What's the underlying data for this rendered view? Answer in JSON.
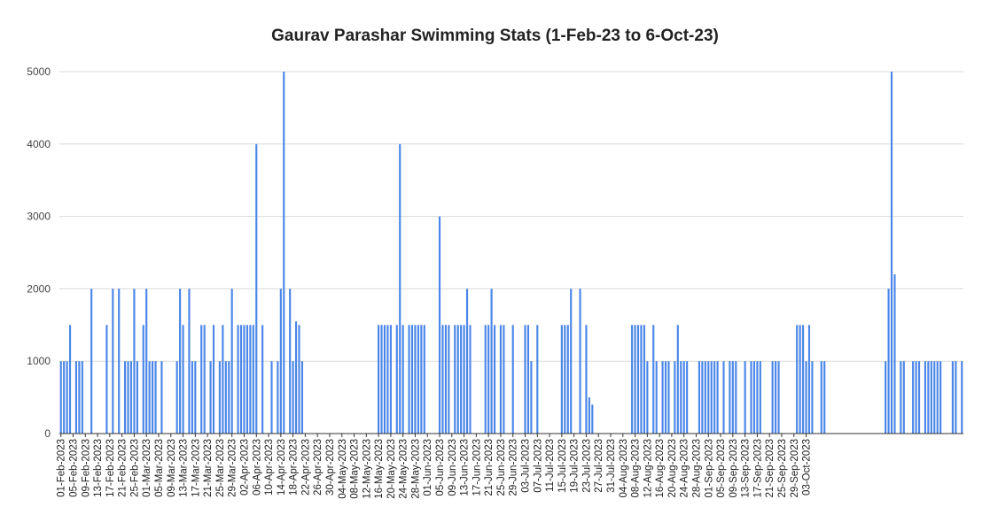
{
  "chart_data": {
    "type": "bar",
    "title": "Gaurav Parashar Swimming Stats (1-Feb-23 to 6-Oct-23)",
    "xlabel": "",
    "ylabel": "",
    "ylim": [
      0,
      5000
    ],
    "yticks": [
      0,
      1000,
      2000,
      3000,
      4000,
      5000
    ],
    "grid": true,
    "legend": "none",
    "start_date": "2023-02-01",
    "x_tick_labels": [
      "01-Feb-2023",
      "05-Feb-2023",
      "09-Feb-2023",
      "13-Feb-2023",
      "17-Feb-2023",
      "21-Feb-2023",
      "25-Feb-2023",
      "01-Mar-2023",
      "05-Mar-2023",
      "09-Mar-2023",
      "13-Mar-2023",
      "17-Mar-2023",
      "21-Mar-2023",
      "25-Mar-2023",
      "29-Mar-2023",
      "02-Apr-2023",
      "06-Apr-2023",
      "10-Apr-2023",
      "14-Apr-2023",
      "18-Apr-2023",
      "22-Apr-2023",
      "26-Apr-2023",
      "30-Apr-2023",
      "04-May-2023",
      "08-May-2023",
      "12-May-2023",
      "16-May-2023",
      "20-May-2023",
      "24-May-2023",
      "28-May-2023",
      "01-Jun-2023",
      "05-Jun-2023",
      "09-Jun-2023",
      "13-Jun-2023",
      "17-Jun-2023",
      "21-Jun-2023",
      "25-Jun-2023",
      "29-Jun-2023",
      "03-Jul-2023",
      "07-Jul-2023",
      "11-Jul-2023",
      "15-Jul-2023",
      "19-Jul-2023",
      "23-Jul-2023",
      "27-Jul-2023",
      "31-Jul-2023",
      "04-Aug-2023",
      "08-Aug-2023",
      "12-Aug-2023",
      "16-Aug-2023",
      "20-Aug-2023",
      "24-Aug-2023",
      "28-Aug-2023",
      "01-Sep-2023",
      "05-Sep-2023",
      "09-Sep-2023",
      "13-Sep-2023",
      "17-Sep-2023",
      "21-Sep-2023",
      "25-Sep-2023",
      "29-Sep-2023",
      "03-Oct-2023"
    ],
    "series": [
      {
        "color": "#4a86e8",
        "values": [
          1000,
          1000,
          1000,
          1500,
          0,
          1000,
          1000,
          1000,
          0,
          0,
          2000,
          0,
          0,
          0,
          0,
          1500,
          0,
          2000,
          0,
          2000,
          0,
          1000,
          1000,
          1000,
          2000,
          1000,
          0,
          1500,
          2000,
          1000,
          1000,
          1000,
          0,
          1000,
          0,
          0,
          0,
          0,
          1000,
          2000,
          1500,
          0,
          2000,
          1000,
          1000,
          0,
          1500,
          1500,
          0,
          1000,
          1500,
          0,
          1000,
          1500,
          1000,
          1000,
          2000,
          0,
          1500,
          1500,
          1500,
          1500,
          1500,
          1500,
          4000,
          0,
          1500,
          0,
          0,
          1000,
          0,
          1000,
          2000,
          5000,
          0,
          2000,
          1000,
          1550,
          1500,
          1000,
          0,
          0,
          0,
          0,
          0,
          0,
          0,
          0,
          0,
          0,
          0,
          0,
          0,
          0,
          0,
          0,
          0,
          0,
          0,
          0,
          0,
          0,
          0,
          0,
          1500,
          1500,
          1500,
          1500,
          1500,
          0,
          1500,
          4000,
          1500,
          0,
          1500,
          1500,
          1500,
          1500,
          1500,
          1500,
          0,
          0,
          0,
          0,
          3000,
          1500,
          1500,
          1500,
          0,
          1500,
          1500,
          1500,
          1500,
          2000,
          1500,
          0,
          0,
          0,
          0,
          1500,
          1500,
          2000,
          1500,
          0,
          1500,
          1500,
          0,
          0,
          1500,
          0,
          0,
          0,
          1500,
          1500,
          1000,
          0,
          1500,
          0,
          0,
          0,
          0,
          0,
          0,
          0,
          1500,
          1500,
          1500,
          2000,
          0,
          0,
          2000,
          0,
          1500,
          500,
          400,
          0,
          0,
          0,
          0,
          0,
          0,
          0,
          0,
          0,
          0,
          0,
          0,
          1500,
          1500,
          1500,
          1500,
          1500,
          1000,
          0,
          1500,
          1000,
          0,
          1000,
          1000,
          1000,
          0,
          1000,
          1500,
          1000,
          1000,
          1000,
          0,
          0,
          0,
          1000,
          1000,
          1000,
          1000,
          1000,
          1000,
          1000,
          0,
          1000,
          0,
          1000,
          1000,
          1000,
          0,
          0,
          1000,
          0,
          1000,
          1000,
          1000,
          1000,
          0,
          0,
          0,
          1000,
          1000,
          1000,
          0,
          0,
          0,
          0,
          0,
          1500,
          1500,
          1500,
          1000,
          1500,
          1000,
          0,
          0,
          1000,
          1000,
          0,
          0,
          0,
          0,
          0,
          0,
          0,
          0,
          0,
          0,
          0,
          0,
          0,
          0,
          0,
          0,
          0,
          0,
          0,
          1000,
          2000,
          5000,
          2200,
          0,
          1000,
          1000,
          0,
          0,
          1000,
          1000,
          1000,
          0,
          1000,
          1000,
          1000,
          1000,
          1000,
          1000,
          0,
          0,
          0,
          1000,
          1000,
          0,
          1000
        ]
      }
    ]
  }
}
